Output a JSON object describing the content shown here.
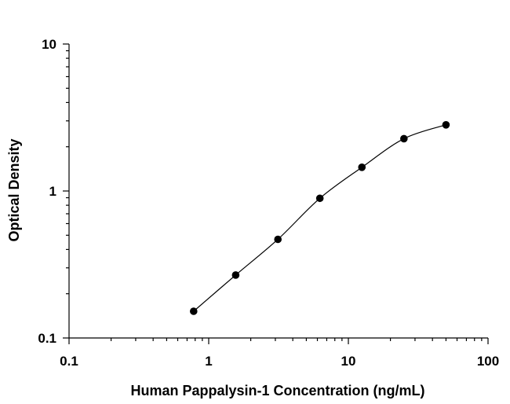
{
  "chart_data": {
    "type": "scatter",
    "title": "",
    "xlabel": "Human Pappalysin-1 Concentration (ng/mL)",
    "ylabel": "Optical Density",
    "x_scale": "log",
    "y_scale": "log",
    "xlim": [
      0.1,
      100
    ],
    "ylim": [
      0.1,
      10
    ],
    "x_tick_labels": [
      "0.1",
      "1",
      "10",
      "100"
    ],
    "y_tick_labels": [
      "0.1",
      "1",
      "10"
    ],
    "grid": false,
    "legend": "none",
    "fitted_curve": true,
    "series": [
      {
        "x": [
          0.78,
          1.56,
          3.13,
          6.25,
          12.5,
          25,
          50
        ],
        "y": [
          0.152,
          0.268,
          0.469,
          0.892,
          1.45,
          2.27,
          2.82
        ]
      }
    ]
  }
}
